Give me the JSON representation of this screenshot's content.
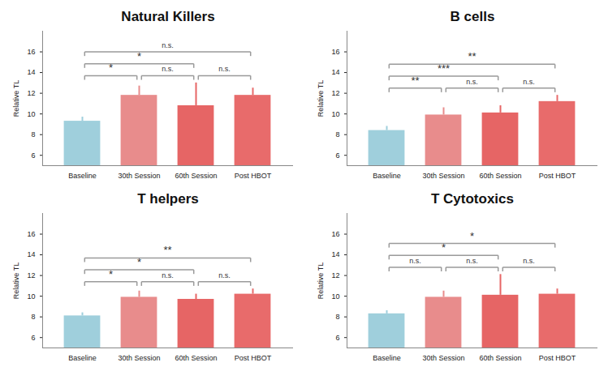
{
  "chart_data": [
    {
      "type": "bar",
      "title": "Natural Killers",
      "y_label": "Relative TL",
      "categories": [
        "Baseline",
        "30th Session",
        "60th Session",
        "Post HBOT"
      ],
      "values": [
        9.3,
        11.8,
        10.8,
        11.8
      ],
      "errors": [
        0.4,
        0.9,
        2.2,
        0.7
      ],
      "colors": [
        "#9fcfdc",
        "#e88c8c",
        "#e66565",
        "#e86b6b"
      ],
      "ylim": [
        5,
        18
      ],
      "yticks": [
        6,
        8,
        10,
        12,
        14,
        16
      ],
      "significance": [
        {
          "from": "Baseline",
          "to": "30th Session",
          "label": "*"
        },
        {
          "from": "30th Session",
          "to": "60th Session",
          "label": "n.s."
        },
        {
          "from": "60th Session",
          "to": "Post HBOT",
          "label": "n.s."
        },
        {
          "from": "Baseline",
          "to": "60th Session",
          "label": "*"
        },
        {
          "from": "Baseline",
          "to": "Post HBOT",
          "label": "n.s."
        }
      ]
    },
    {
      "type": "bar",
      "title": "B cells",
      "y_label": "Relative TL",
      "categories": [
        "Baseline",
        "30th Session",
        "60th Session",
        "Post HBOT"
      ],
      "values": [
        8.4,
        9.9,
        10.1,
        11.2
      ],
      "errors": [
        0.4,
        0.7,
        0.7,
        0.6
      ],
      "colors": [
        "#9fcfdc",
        "#e88c8c",
        "#e66565",
        "#e86b6b"
      ],
      "ylim": [
        5,
        18
      ],
      "yticks": [
        6,
        8,
        10,
        12,
        14,
        16
      ],
      "significance": [
        {
          "from": "Baseline",
          "to": "30th Session",
          "label": "**"
        },
        {
          "from": "30th Session",
          "to": "60th Session",
          "label": "n.s."
        },
        {
          "from": "60th Session",
          "to": "Post HBOT",
          "label": "n.s."
        },
        {
          "from": "Baseline",
          "to": "60th Session",
          "label": "***"
        },
        {
          "from": "Baseline",
          "to": "Post HBOT",
          "label": "**"
        }
      ]
    },
    {
      "type": "bar",
      "title": "T helpers",
      "y_label": "Relative TL",
      "categories": [
        "Baseline",
        "30th Session",
        "60th Session",
        "Post HBOT"
      ],
      "values": [
        8.1,
        9.9,
        9.7,
        10.2
      ],
      "errors": [
        0.3,
        0.6,
        0.5,
        0.5
      ],
      "colors": [
        "#9fcfdc",
        "#e88c8c",
        "#e66565",
        "#e86b6b"
      ],
      "ylim": [
        5,
        18
      ],
      "yticks": [
        6,
        8,
        10,
        12,
        14,
        16
      ],
      "significance": [
        {
          "from": "Baseline",
          "to": "30th Session",
          "label": "*"
        },
        {
          "from": "30th Session",
          "to": "60th Session",
          "label": "n.s."
        },
        {
          "from": "60th Session",
          "to": "Post HBOT",
          "label": "n.s."
        },
        {
          "from": "Baseline",
          "to": "60th Session",
          "label": "*"
        },
        {
          "from": "Baseline",
          "to": "Post HBOT",
          "label": "**"
        }
      ]
    },
    {
      "type": "bar",
      "title": "T Cytotoxics",
      "y_label": "Relative TL",
      "categories": [
        "Baseline",
        "30th Session",
        "60th Session",
        "Post HBOT"
      ],
      "values": [
        8.3,
        9.9,
        10.1,
        10.2
      ],
      "errors": [
        0.3,
        0.6,
        2.0,
        0.5
      ],
      "colors": [
        "#9fcfdc",
        "#e88c8c",
        "#e66565",
        "#e86b6b"
      ],
      "ylim": [
        5,
        18
      ],
      "yticks": [
        6,
        8,
        10,
        12,
        14,
        16
      ],
      "significance": [
        {
          "from": "Baseline",
          "to": "30th Session",
          "label": "n.s."
        },
        {
          "from": "30th Session",
          "to": "60th Session",
          "label": "n.s."
        },
        {
          "from": "60th Session",
          "to": "Post HBOT",
          "label": "n.s."
        },
        {
          "from": "Baseline",
          "to": "60th Session",
          "label": "*"
        },
        {
          "from": "Baseline",
          "to": "Post HBOT",
          "label": "*"
        }
      ]
    }
  ]
}
